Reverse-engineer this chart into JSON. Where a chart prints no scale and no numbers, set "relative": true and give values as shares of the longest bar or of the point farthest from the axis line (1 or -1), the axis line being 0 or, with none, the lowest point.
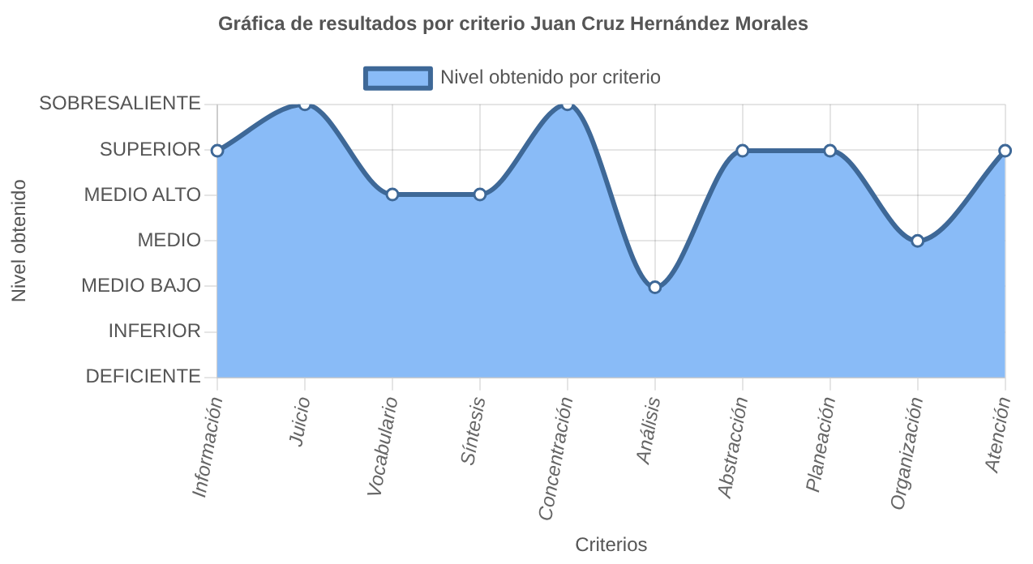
{
  "chart_data": {
    "type": "area",
    "title": "Gráfica de resultados por criterio Juan Cruz Hernández Morales",
    "xlabel": "Criterios",
    "categories": [
      "Información",
      "Juicio",
      "Vocabulario",
      "Síntesis",
      "Concentración",
      "Análisis",
      "Abstracción",
      "Planeación",
      "Organización",
      "Atención"
    ],
    "series": [
      {
        "name": "Nivel obtenido por criterio",
        "color": "#89bbf7",
        "values": [
          0.83,
          1,
          0.67,
          0.67,
          1,
          0.33,
          0.83,
          0.83,
          0.5,
          0.83
        ]
      }
    ],
    "relative": true,
    "annotations": [
      "SOBRESALIENTE",
      "SUPERIOR",
      "MEDIO ALTO",
      "MEDIO",
      "MEDIO BAJO",
      "INFERIOR",
      "DEFICIENTE",
      "Nivel obtenido"
    ],
    "grid": true,
    "legend": "top",
    "marker": "circle",
    "line_style": "solid"
  }
}
